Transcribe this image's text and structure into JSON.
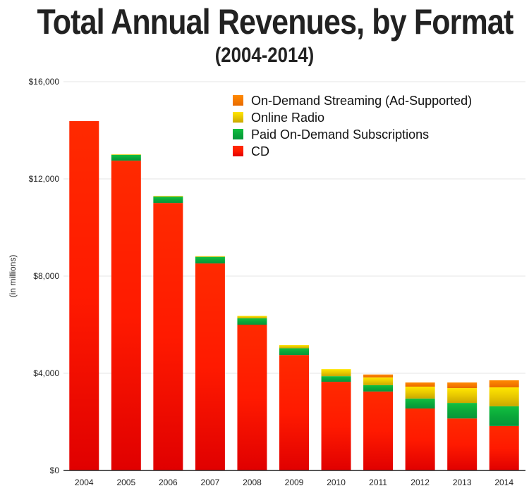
{
  "chart_data": {
    "type": "bar",
    "stacked": true,
    "title": "Total Annual Revenues, by Format",
    "subtitle": "(2004-2014)",
    "xlabel": "",
    "ylabel": "(in millions)",
    "ylim": [
      0,
      16000
    ],
    "yticks": [
      0,
      4000,
      8000,
      12000,
      16000
    ],
    "ytick_labels": [
      "$0",
      "$4,000",
      "$8,000",
      "$12,000",
      "$16,000"
    ],
    "grid": true,
    "legend_position": "top-right",
    "categories": [
      "2004",
      "2005",
      "2006",
      "2007",
      "2008",
      "2009",
      "2010",
      "2011",
      "2012",
      "2013",
      "2014"
    ],
    "series": [
      {
        "name": "CD",
        "color": "#ff1a00",
        "values": [
          14380,
          12750,
          11010,
          8520,
          6000,
          4750,
          3650,
          3250,
          2550,
          2140,
          1830
        ]
      },
      {
        "name": "Paid On-Demand Subscriptions",
        "color": "#0aa83a",
        "values": [
          0,
          240,
          260,
          270,
          260,
          280,
          230,
          260,
          410,
          640,
          810
        ]
      },
      {
        "name": "Online Radio",
        "color": "#e8c800",
        "values": [
          0,
          20,
          30,
          30,
          100,
          130,
          290,
          320,
          490,
          610,
          780
        ]
      },
      {
        "name": "On-Demand Streaming (Ad-Supported)",
        "color": "#f57a00",
        "values": [
          0,
          0,
          0,
          0,
          0,
          0,
          0,
          120,
          170,
          230,
          290
        ]
      }
    ]
  }
}
